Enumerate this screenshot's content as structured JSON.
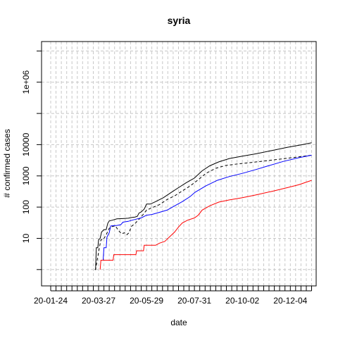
{
  "chart_data": {
    "type": "line",
    "title": "syria",
    "xlabel": "date",
    "ylabel": "# confirmed cases",
    "y_scale": "log",
    "ylim": [
      0.3,
      20000000
    ],
    "xlim": [
      "2020-01-12",
      "2021-01-07"
    ],
    "x_tick_labels": [
      "20-01-24",
      "20-03-27",
      "20-05-29",
      "20-07-31",
      "20-10-02",
      "20-12-04"
    ],
    "x_tick_dates": [
      "2020-01-24",
      "2020-03-27",
      "2020-05-29",
      "2020-07-31",
      "2020-10-02",
      "2020-12-04"
    ],
    "y_tick_labels": [
      "10",
      "100",
      "1000",
      "10000",
      "1e+06"
    ],
    "y_tick_values": [
      10,
      100,
      1000,
      10000,
      1000000
    ],
    "grid": true,
    "series": [
      {
        "color": "#000000",
        "dash": "solid",
        "points": [
          [
            "2020-03-22",
            1
          ],
          [
            "2020-03-23",
            1
          ],
          [
            "2020-03-24",
            5
          ],
          [
            "2020-03-26",
            5
          ],
          [
            "2020-03-27",
            9
          ],
          [
            "2020-03-29",
            10
          ],
          [
            "2020-03-31",
            16
          ],
          [
            "2020-04-03",
            19
          ],
          [
            "2020-04-06",
            19
          ],
          [
            "2020-04-08",
            30
          ],
          [
            "2020-04-10",
            36
          ],
          [
            "2020-04-14",
            38
          ],
          [
            "2020-04-20",
            42
          ],
          [
            "2020-04-28",
            43
          ],
          [
            "2020-05-05",
            44
          ],
          [
            "2020-05-10",
            47
          ],
          [
            "2020-05-14",
            48
          ],
          [
            "2020-05-17",
            51
          ],
          [
            "2020-05-19",
            64
          ],
          [
            "2020-05-22",
            70
          ],
          [
            "2020-05-26",
            86
          ],
          [
            "2020-05-29",
            125
          ],
          [
            "2020-06-03",
            125
          ],
          [
            "2020-06-10",
            150
          ],
          [
            "2020-06-20",
            200
          ],
          [
            "2020-06-30",
            290
          ],
          [
            "2020-07-10",
            420
          ],
          [
            "2020-07-20",
            600
          ],
          [
            "2020-07-31",
            850
          ],
          [
            "2020-08-10",
            1450
          ],
          [
            "2020-08-20",
            2100
          ],
          [
            "2020-09-01",
            2800
          ],
          [
            "2020-09-15",
            3600
          ],
          [
            "2020-10-02",
            4300
          ],
          [
            "2020-10-20",
            5100
          ],
          [
            "2020-11-10",
            6500
          ],
          [
            "2020-11-30",
            8200
          ],
          [
            "2020-12-20",
            10000
          ],
          [
            "2021-01-01",
            11500
          ]
        ]
      },
      {
        "color": "#000000",
        "dash": "dashed",
        "points": [
          [
            "2020-03-22",
            1
          ],
          [
            "2020-03-23",
            1
          ],
          [
            "2020-03-28",
            5
          ],
          [
            "2020-03-30",
            9
          ],
          [
            "2020-04-02",
            9
          ],
          [
            "2020-04-06",
            13
          ],
          [
            "2020-04-10",
            21
          ],
          [
            "2020-04-14",
            24
          ],
          [
            "2020-04-18",
            25
          ],
          [
            "2020-04-22",
            18
          ],
          [
            "2020-04-26",
            14
          ],
          [
            "2020-04-30",
            15
          ],
          [
            "2020-05-03",
            13
          ],
          [
            "2020-05-06",
            15
          ],
          [
            "2020-05-09",
            24
          ],
          [
            "2020-05-14",
            30
          ],
          [
            "2020-05-18",
            38
          ],
          [
            "2020-05-23",
            52
          ],
          [
            "2020-05-29",
            80
          ],
          [
            "2020-06-05",
            95
          ],
          [
            "2020-06-15",
            120
          ],
          [
            "2020-06-25",
            175
          ],
          [
            "2020-07-05",
            230
          ],
          [
            "2020-07-15",
            330
          ],
          [
            "2020-07-25",
            470
          ],
          [
            "2020-08-05",
            750
          ],
          [
            "2020-08-15",
            1200
          ],
          [
            "2020-08-28",
            1750
          ],
          [
            "2020-09-10",
            2150
          ],
          [
            "2020-09-25",
            2400
          ],
          [
            "2020-10-15",
            2700
          ],
          [
            "2020-11-05",
            3100
          ],
          [
            "2020-11-25",
            3550
          ],
          [
            "2020-12-15",
            4050
          ],
          [
            "2021-01-01",
            4600
          ]
        ]
      },
      {
        "color": "#0000ff",
        "dash": "solid",
        "points": [
          [
            "2020-03-30",
            2
          ],
          [
            "2020-04-02",
            2
          ],
          [
            "2020-04-03",
            5
          ],
          [
            "2020-04-06",
            5
          ],
          [
            "2020-04-07",
            11
          ],
          [
            "2020-04-10",
            15
          ],
          [
            "2020-04-12",
            25
          ],
          [
            "2020-04-20",
            26
          ],
          [
            "2020-04-25",
            27
          ],
          [
            "2020-04-28",
            33
          ],
          [
            "2020-05-05",
            35
          ],
          [
            "2020-05-10",
            38
          ],
          [
            "2020-05-15",
            41
          ],
          [
            "2020-05-22",
            45
          ],
          [
            "2020-05-29",
            55
          ],
          [
            "2020-06-05",
            58
          ],
          [
            "2020-06-15",
            68
          ],
          [
            "2020-06-25",
            80
          ],
          [
            "2020-07-05",
            110
          ],
          [
            "2020-07-15",
            150
          ],
          [
            "2020-07-25",
            215
          ],
          [
            "2020-08-01",
            300
          ],
          [
            "2020-08-15",
            480
          ],
          [
            "2020-08-30",
            720
          ],
          [
            "2020-09-15",
            950
          ],
          [
            "2020-10-02",
            1200
          ],
          [
            "2020-10-20",
            1600
          ],
          [
            "2020-11-05",
            2100
          ],
          [
            "2020-11-25",
            2900
          ],
          [
            "2020-12-15",
            3800
          ],
          [
            "2021-01-01",
            4600
          ]
        ]
      },
      {
        "color": "#ff0000",
        "dash": "solid",
        "points": [
          [
            "2020-03-29",
            1
          ],
          [
            "2020-03-30",
            2
          ],
          [
            "2020-04-15",
            2
          ],
          [
            "2020-04-16",
            3
          ],
          [
            "2020-05-15",
            3
          ],
          [
            "2020-05-16",
            4
          ],
          [
            "2020-05-25",
            4
          ],
          [
            "2020-05-26",
            6
          ],
          [
            "2020-06-10",
            6
          ],
          [
            "2020-06-15",
            7
          ],
          [
            "2020-06-22",
            8
          ],
          [
            "2020-06-28",
            11
          ],
          [
            "2020-07-05",
            16
          ],
          [
            "2020-07-10",
            23
          ],
          [
            "2020-07-15",
            31
          ],
          [
            "2020-07-22",
            38
          ],
          [
            "2020-07-31",
            45
          ],
          [
            "2020-08-05",
            55
          ],
          [
            "2020-08-10",
            80
          ],
          [
            "2020-08-20",
            110
          ],
          [
            "2020-09-01",
            145
          ],
          [
            "2020-09-15",
            170
          ],
          [
            "2020-10-02",
            200
          ],
          [
            "2020-10-20",
            245
          ],
          [
            "2020-11-10",
            320
          ],
          [
            "2020-11-30",
            420
          ],
          [
            "2020-12-15",
            520
          ],
          [
            "2021-01-01",
            720
          ]
        ]
      }
    ]
  }
}
